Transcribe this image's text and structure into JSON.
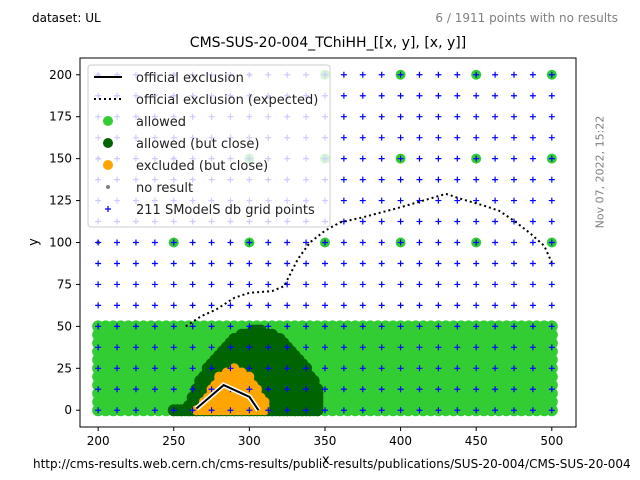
{
  "header": {
    "dataset": "dataset: UL",
    "no_results": "6 / 1911 points with no results"
  },
  "side_stamp": "Nov 07, 2022, 15:22",
  "footer_url": "http://cms-results.web.cern.ch/cms-results/public-results/publications/SUS-20-004/CMS-SUS-20-004",
  "chart_data": {
    "type": "scatter",
    "title": "CMS-SUS-20-004_TChiHH_[[x, y], [x, y]]",
    "xlabel": "x",
    "ylabel": "y",
    "xlim": [
      188,
      516
    ],
    "ylim": [
      -10,
      210
    ],
    "xticks": [
      200,
      250,
      300,
      350,
      400,
      450,
      500
    ],
    "yticks": [
      0,
      25,
      50,
      75,
      100,
      125,
      150,
      175,
      200
    ],
    "legend_position": "top-left",
    "colors": {
      "allowed": "#32cd32",
      "allowed_close": "#006400",
      "excluded_close": "#ffa500",
      "no_result": "#808080",
      "grid_points": "#0000ff",
      "official": "#000000"
    },
    "legend": [
      {
        "key": "official",
        "label": "official exclusion"
      },
      {
        "key": "expected",
        "label": "official exclusion (expected)"
      },
      {
        "key": "allowed",
        "label": "allowed"
      },
      {
        "key": "allowed_close",
        "label": "allowed (but close)"
      },
      {
        "key": "excluded_close",
        "label": "excluded (but close)"
      },
      {
        "key": "no_result",
        "label": "no result"
      },
      {
        "key": "grid_points",
        "label": "211 SModelS db grid points"
      }
    ],
    "dense_region": {
      "xmin": 200,
      "xmax": 500,
      "ymin": 0,
      "ymax": 50,
      "step_x": 5,
      "step_y": 5
    },
    "allowed_close_region": {
      "xmin": 250,
      "xmax": 345,
      "ymin": 0,
      "peak_x": 305,
      "peak_y": 48
    },
    "excluded_close_region": {
      "xmin": 265,
      "xmax": 310,
      "ymin": 0,
      "peak_x": 290,
      "peak_y": 25
    },
    "allowed_sparse": [
      [
        250,
        100
      ],
      [
        300,
        100
      ],
      [
        350,
        100
      ],
      [
        400,
        100
      ],
      [
        450,
        100
      ],
      [
        500,
        100
      ],
      [
        300,
        150
      ],
      [
        350,
        150
      ],
      [
        400,
        150
      ],
      [
        450,
        150
      ],
      [
        500,
        150
      ],
      [
        350,
        200
      ],
      [
        400,
        200
      ],
      [
        450,
        200
      ],
      [
        500,
        200
      ]
    ],
    "no_result": [
      [
        200,
        100
      ],
      [
        200,
        150
      ],
      [
        200,
        200
      ],
      [
        250,
        150
      ],
      [
        250,
        200
      ],
      [
        300,
        200
      ]
    ],
    "grid_columns": [
      200,
      212.5,
      225,
      237.5,
      250,
      262.5,
      275,
      287.5,
      300,
      312.5,
      325,
      337.5,
      350,
      362.5,
      375,
      387.5,
      400,
      412.5,
      425,
      437.5,
      450,
      462.5,
      475,
      487.5,
      500
    ],
    "grid_rows": [
      0,
      12.5,
      25,
      37.5,
      50,
      62.5,
      75,
      87.5,
      100,
      112.5,
      125,
      137.5,
      150,
      162.5,
      175,
      187.5,
      200
    ],
    "official_exclusion": [
      [
        265,
        1
      ],
      [
        283,
        15
      ],
      [
        300,
        8
      ],
      [
        306,
        0
      ]
    ],
    "expected_exclusion": [
      [
        258,
        50
      ],
      [
        268,
        56
      ],
      [
        278,
        60
      ],
      [
        290,
        67
      ],
      [
        300,
        70
      ],
      [
        315,
        71
      ],
      [
        323,
        74
      ],
      [
        332,
        90
      ],
      [
        340,
        100
      ],
      [
        350,
        107
      ],
      [
        360,
        112
      ],
      [
        375,
        115
      ],
      [
        400,
        121
      ],
      [
        415,
        125
      ],
      [
        430,
        129
      ],
      [
        440,
        126
      ],
      [
        455,
        122
      ],
      [
        465,
        119
      ],
      [
        475,
        113
      ],
      [
        485,
        106
      ],
      [
        495,
        98
      ],
      [
        500,
        88
      ]
    ]
  }
}
